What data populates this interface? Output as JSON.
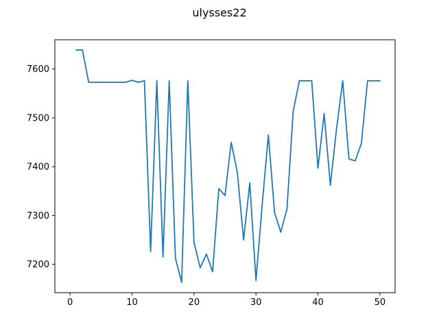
{
  "chart_data": {
    "type": "line",
    "title": "ulysses22",
    "xlabel": "",
    "ylabel": "",
    "xlim": [
      -2.45,
      52.45
    ],
    "ylim": [
      7142,
      7660
    ],
    "xticks": [
      0,
      10,
      20,
      30,
      40,
      50
    ],
    "yticks": [
      7200,
      7300,
      7400,
      7500,
      7600
    ],
    "grid": false,
    "line_color": "#1f77b4",
    "series": [
      {
        "x": [
          1,
          2,
          3,
          4,
          5,
          6,
          7,
          8,
          9,
          10,
          11,
          12,
          13,
          14,
          15,
          16,
          17,
          18,
          19,
          20,
          21,
          22,
          23,
          24,
          25,
          26,
          27,
          28,
          29,
          30,
          31,
          32,
          33,
          34,
          35,
          36,
          37,
          38,
          39,
          40,
          41,
          42,
          43,
          44,
          45,
          46,
          47,
          48,
          49,
          50
        ],
        "values": [
          7639,
          7639,
          7573,
          7573,
          7573,
          7573,
          7573,
          7573,
          7573,
          7577,
          7573,
          7576,
          7226,
          7576,
          7215,
          7576,
          7213,
          7163,
          7576,
          7245,
          7193,
          7221,
          7185,
          7355,
          7341,
          7450,
          7388,
          7250,
          7367,
          7167,
          7322,
          7465,
          7306,
          7266,
          7313,
          7513,
          7576,
          7576,
          7576,
          7397,
          7509,
          7362,
          7478,
          7576,
          7416,
          7412,
          7447,
          7576,
          7576,
          7576
        ]
      }
    ]
  }
}
